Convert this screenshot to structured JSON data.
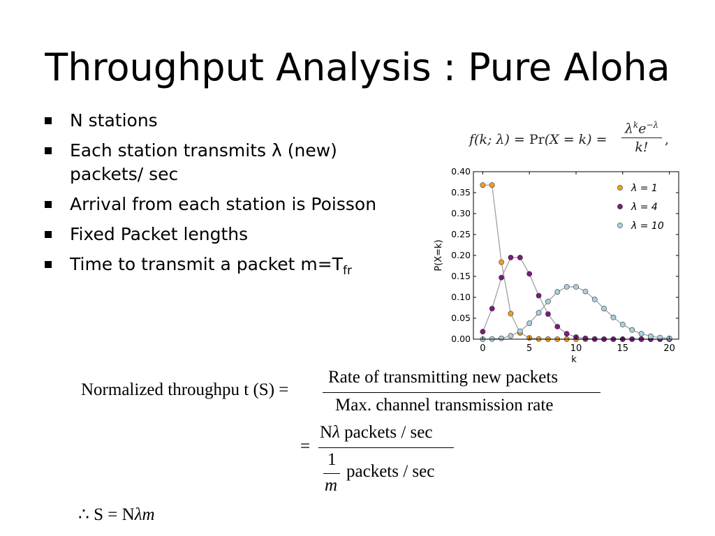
{
  "slide": {
    "title": "Throughput Analysis : Pure Aloha",
    "bullets": [
      {
        "text": "N stations"
      },
      {
        "text": "Each station transmits λ (new) packets/ sec"
      },
      {
        "text": "Arrival from each station is Poisson"
      },
      {
        "text": "Fixed Packet lengths"
      },
      {
        "text": "Time to transmit a packet m=T",
        "subscript": "fr"
      }
    ]
  },
  "poisson_formula": {
    "lhs": "f(k; λ) = ",
    "pr": "Pr",
    "mid": "(X = k) = ",
    "numerator_base": "λ",
    "numerator_exp1": "k",
    "numerator_e": "e",
    "numerator_exp2": "−λ",
    "denominator": "k!",
    "trailing": ","
  },
  "chart_data": {
    "type": "line",
    "xlabel": "k",
    "ylabel": "P(X=k)",
    "xlim": [
      -1,
      21
    ],
    "ylim": [
      0,
      0.4
    ],
    "xticks": [
      0,
      5,
      10,
      15,
      20
    ],
    "yticks": [
      0.0,
      0.05,
      0.1,
      0.15,
      0.2,
      0.25,
      0.3,
      0.35,
      0.4
    ],
    "ytick_labels": [
      "0.00",
      "0.05",
      "0.10",
      "0.15",
      "0.20",
      "0.25",
      "0.30",
      "0.35",
      "0.40"
    ],
    "grid": false,
    "legend": "top-right",
    "line_color": "#999999",
    "series": [
      {
        "name": "λ = 1",
        "color": "#f0a01e",
        "x": [
          0,
          1,
          2,
          3,
          4,
          5,
          6,
          7,
          8,
          9,
          10,
          11,
          12,
          13,
          14,
          15,
          16,
          17,
          18,
          19,
          20
        ],
        "values": [
          0.368,
          0.368,
          0.184,
          0.061,
          0.015,
          0.003,
          0.0005,
          0.0001,
          0,
          0,
          0,
          0,
          0,
          0,
          0,
          0,
          0,
          0,
          0,
          0,
          0
        ]
      },
      {
        "name": "λ = 4",
        "color": "#7b1a7e",
        "x": [
          0,
          1,
          2,
          3,
          4,
          5,
          6,
          7,
          8,
          9,
          10,
          11,
          12,
          13,
          14,
          15,
          16,
          17,
          18,
          19,
          20
        ],
        "values": [
          0.018,
          0.073,
          0.147,
          0.195,
          0.195,
          0.156,
          0.104,
          0.06,
          0.03,
          0.013,
          0.005,
          0.002,
          0.0006,
          0.0002,
          0,
          0,
          0,
          0,
          0,
          0,
          0
        ]
      },
      {
        "name": "λ = 10",
        "color": "#a8d0e0",
        "x": [
          0,
          1,
          2,
          3,
          4,
          5,
          6,
          7,
          8,
          9,
          10,
          11,
          12,
          13,
          14,
          15,
          16,
          17,
          18,
          19,
          20
        ],
        "values": [
          5e-05,
          0.0005,
          0.002,
          0.008,
          0.019,
          0.038,
          0.063,
          0.09,
          0.113,
          0.125,
          0.125,
          0.114,
          0.095,
          0.073,
          0.052,
          0.035,
          0.022,
          0.013,
          0.007,
          0.004,
          0.002
        ]
      }
    ]
  },
  "equations": {
    "lhs": "Normalized throughpu t (S) =",
    "frac1_num": "Rate of transmitting new packets",
    "frac1_den": "Max. channel transmission rate",
    "eq2_sign": "=",
    "frac2_num_pre": "N",
    "frac2_num_lambda": "λ",
    "frac2_num_post": " packets / sec",
    "frac2_den_one": "1",
    "frac2_den_m": "m",
    "frac2_den_post": "packets / sec",
    "therefore_pre": "∴ S = N",
    "therefore_lambda": "λ",
    "therefore_m": "m"
  }
}
